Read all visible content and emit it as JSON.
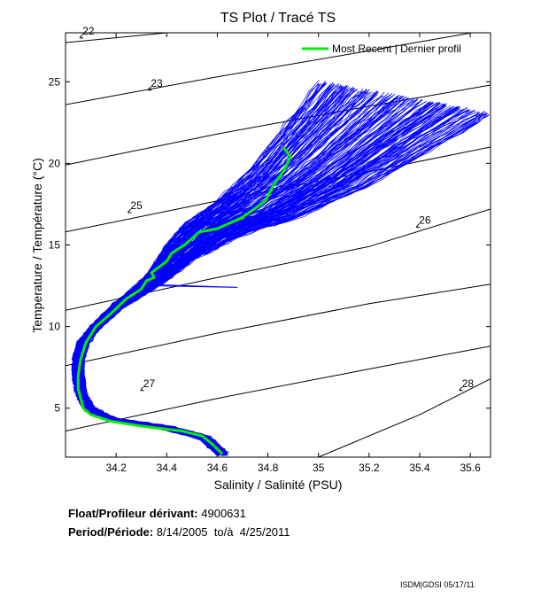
{
  "chart_data": {
    "type": "line",
    "title": "TS Plot / Tracé TS",
    "xlabel": "Salinity / Salinité (PSU)",
    "ylabel": "Temperature / Température (°C)",
    "xlim": [
      34.0,
      35.68
    ],
    "ylim": [
      2.0,
      28.0
    ],
    "xticks": [
      34.2,
      34.4,
      34.6,
      34.8,
      35,
      35.2,
      35.4,
      35.6
    ],
    "xtick_labels": [
      "34.2",
      "34.4",
      "34.6",
      "34.8",
      "35",
      "35.2",
      "35.4",
      "35.6"
    ],
    "yticks": [
      5,
      10,
      15,
      20,
      25
    ],
    "ytick_labels": [
      "5",
      "10",
      "15",
      "20",
      "25"
    ],
    "legend": {
      "label": "Most Recent | Dernier profil",
      "position": "top-right"
    },
    "density_contours": [
      {
        "label": "22",
        "points": [
          [
            34.0,
            27.4
          ],
          [
            34.4,
            28.0
          ]
        ],
        "label_at": [
          34.06,
          27.9
        ]
      },
      {
        "label": "23",
        "points": [
          [
            34.0,
            23.6
          ],
          [
            34.6,
            25.3
          ],
          [
            35.2,
            26.9
          ],
          [
            35.68,
            28.2
          ]
        ],
        "label_at": [
          34.33,
          24.7
        ]
      },
      {
        "label": null,
        "points": [
          [
            34.0,
            19.9
          ],
          [
            34.6,
            21.8
          ],
          [
            35.2,
            23.5
          ],
          [
            35.68,
            24.8
          ]
        ],
        "label_at": null
      },
      {
        "label": "25",
        "points": [
          [
            34.0,
            15.8
          ],
          [
            34.6,
            17.7
          ],
          [
            35.2,
            19.5
          ],
          [
            35.68,
            21.0
          ]
        ],
        "label_at": [
          34.25,
          17.2
        ]
      },
      {
        "label": "26",
        "points": [
          [
            34.0,
            11.0
          ],
          [
            34.6,
            13.0
          ],
          [
            35.2,
            14.9
          ],
          [
            35.68,
            17.2
          ]
        ],
        "label_at": [
          35.39,
          16.3
        ]
      },
      {
        "label": null,
        "points": [
          [
            34.0,
            7.6
          ],
          [
            34.6,
            9.6
          ],
          [
            35.2,
            11.4
          ],
          [
            35.68,
            12.6
          ]
        ],
        "label_at": null
      },
      {
        "label": "27",
        "points": [
          [
            34.0,
            3.6
          ],
          [
            34.6,
            5.6
          ],
          [
            35.2,
            7.4
          ],
          [
            35.68,
            8.8
          ]
        ],
        "label_at": [
          34.3,
          6.3
        ]
      },
      {
        "label": "28",
        "points": [
          [
            35.0,
            2.0
          ],
          [
            35.4,
            4.6
          ],
          [
            35.68,
            6.8
          ]
        ],
        "label_at": [
          35.56,
          6.3
        ]
      }
    ],
    "series": [
      {
        "name": "Most Recent | Dernier profil",
        "color": "#00ee00",
        "x": [
          34.62,
          34.58,
          34.54,
          34.46,
          34.3,
          34.18,
          34.1,
          34.07,
          34.06,
          34.05,
          34.05,
          34.06,
          34.08,
          34.12,
          34.18,
          34.24,
          34.3,
          34.32,
          34.35,
          34.34,
          34.4,
          34.42,
          34.47,
          34.5,
          34.53,
          34.6,
          34.7,
          34.79,
          34.82,
          34.86,
          34.89,
          34.86
        ],
        "y": [
          2.2,
          2.8,
          3.3,
          3.6,
          3.9,
          4.2,
          4.6,
          5.0,
          5.6,
          6.2,
          7.0,
          8.0,
          9.0,
          10.0,
          10.8,
          11.7,
          12.3,
          12.8,
          13.0,
          13.3,
          14.0,
          14.5,
          15.0,
          15.4,
          15.8,
          16.0,
          16.7,
          17.7,
          18.6,
          19.5,
          20.4,
          21.0
        ]
      },
      {
        "name": "All profiles",
        "color": "#0000ff",
        "profile_count": 200,
        "x_mean": [
          34.62,
          34.55,
          34.4,
          34.18,
          34.09,
          34.06,
          34.05,
          34.05,
          34.07,
          34.12,
          34.22,
          34.35,
          34.46,
          34.58,
          34.75,
          34.95,
          35.15,
          35.35
        ],
        "y_mean": [
          2.2,
          3.2,
          3.8,
          4.3,
          5.0,
          6.0,
          7.0,
          8.0,
          9.0,
          10.0,
          11.4,
          12.8,
          14.5,
          15.9,
          17.1,
          19.0,
          21.5,
          24.0
        ]
      }
    ]
  },
  "info": {
    "float_label": "Float/Profileur dérivant:",
    "float_value": "4900631",
    "period_label": "Period/Période:",
    "period_value": "8/14/2005  to/à  4/25/2011"
  },
  "footer": "ISDM|GDSI 05/17/11"
}
